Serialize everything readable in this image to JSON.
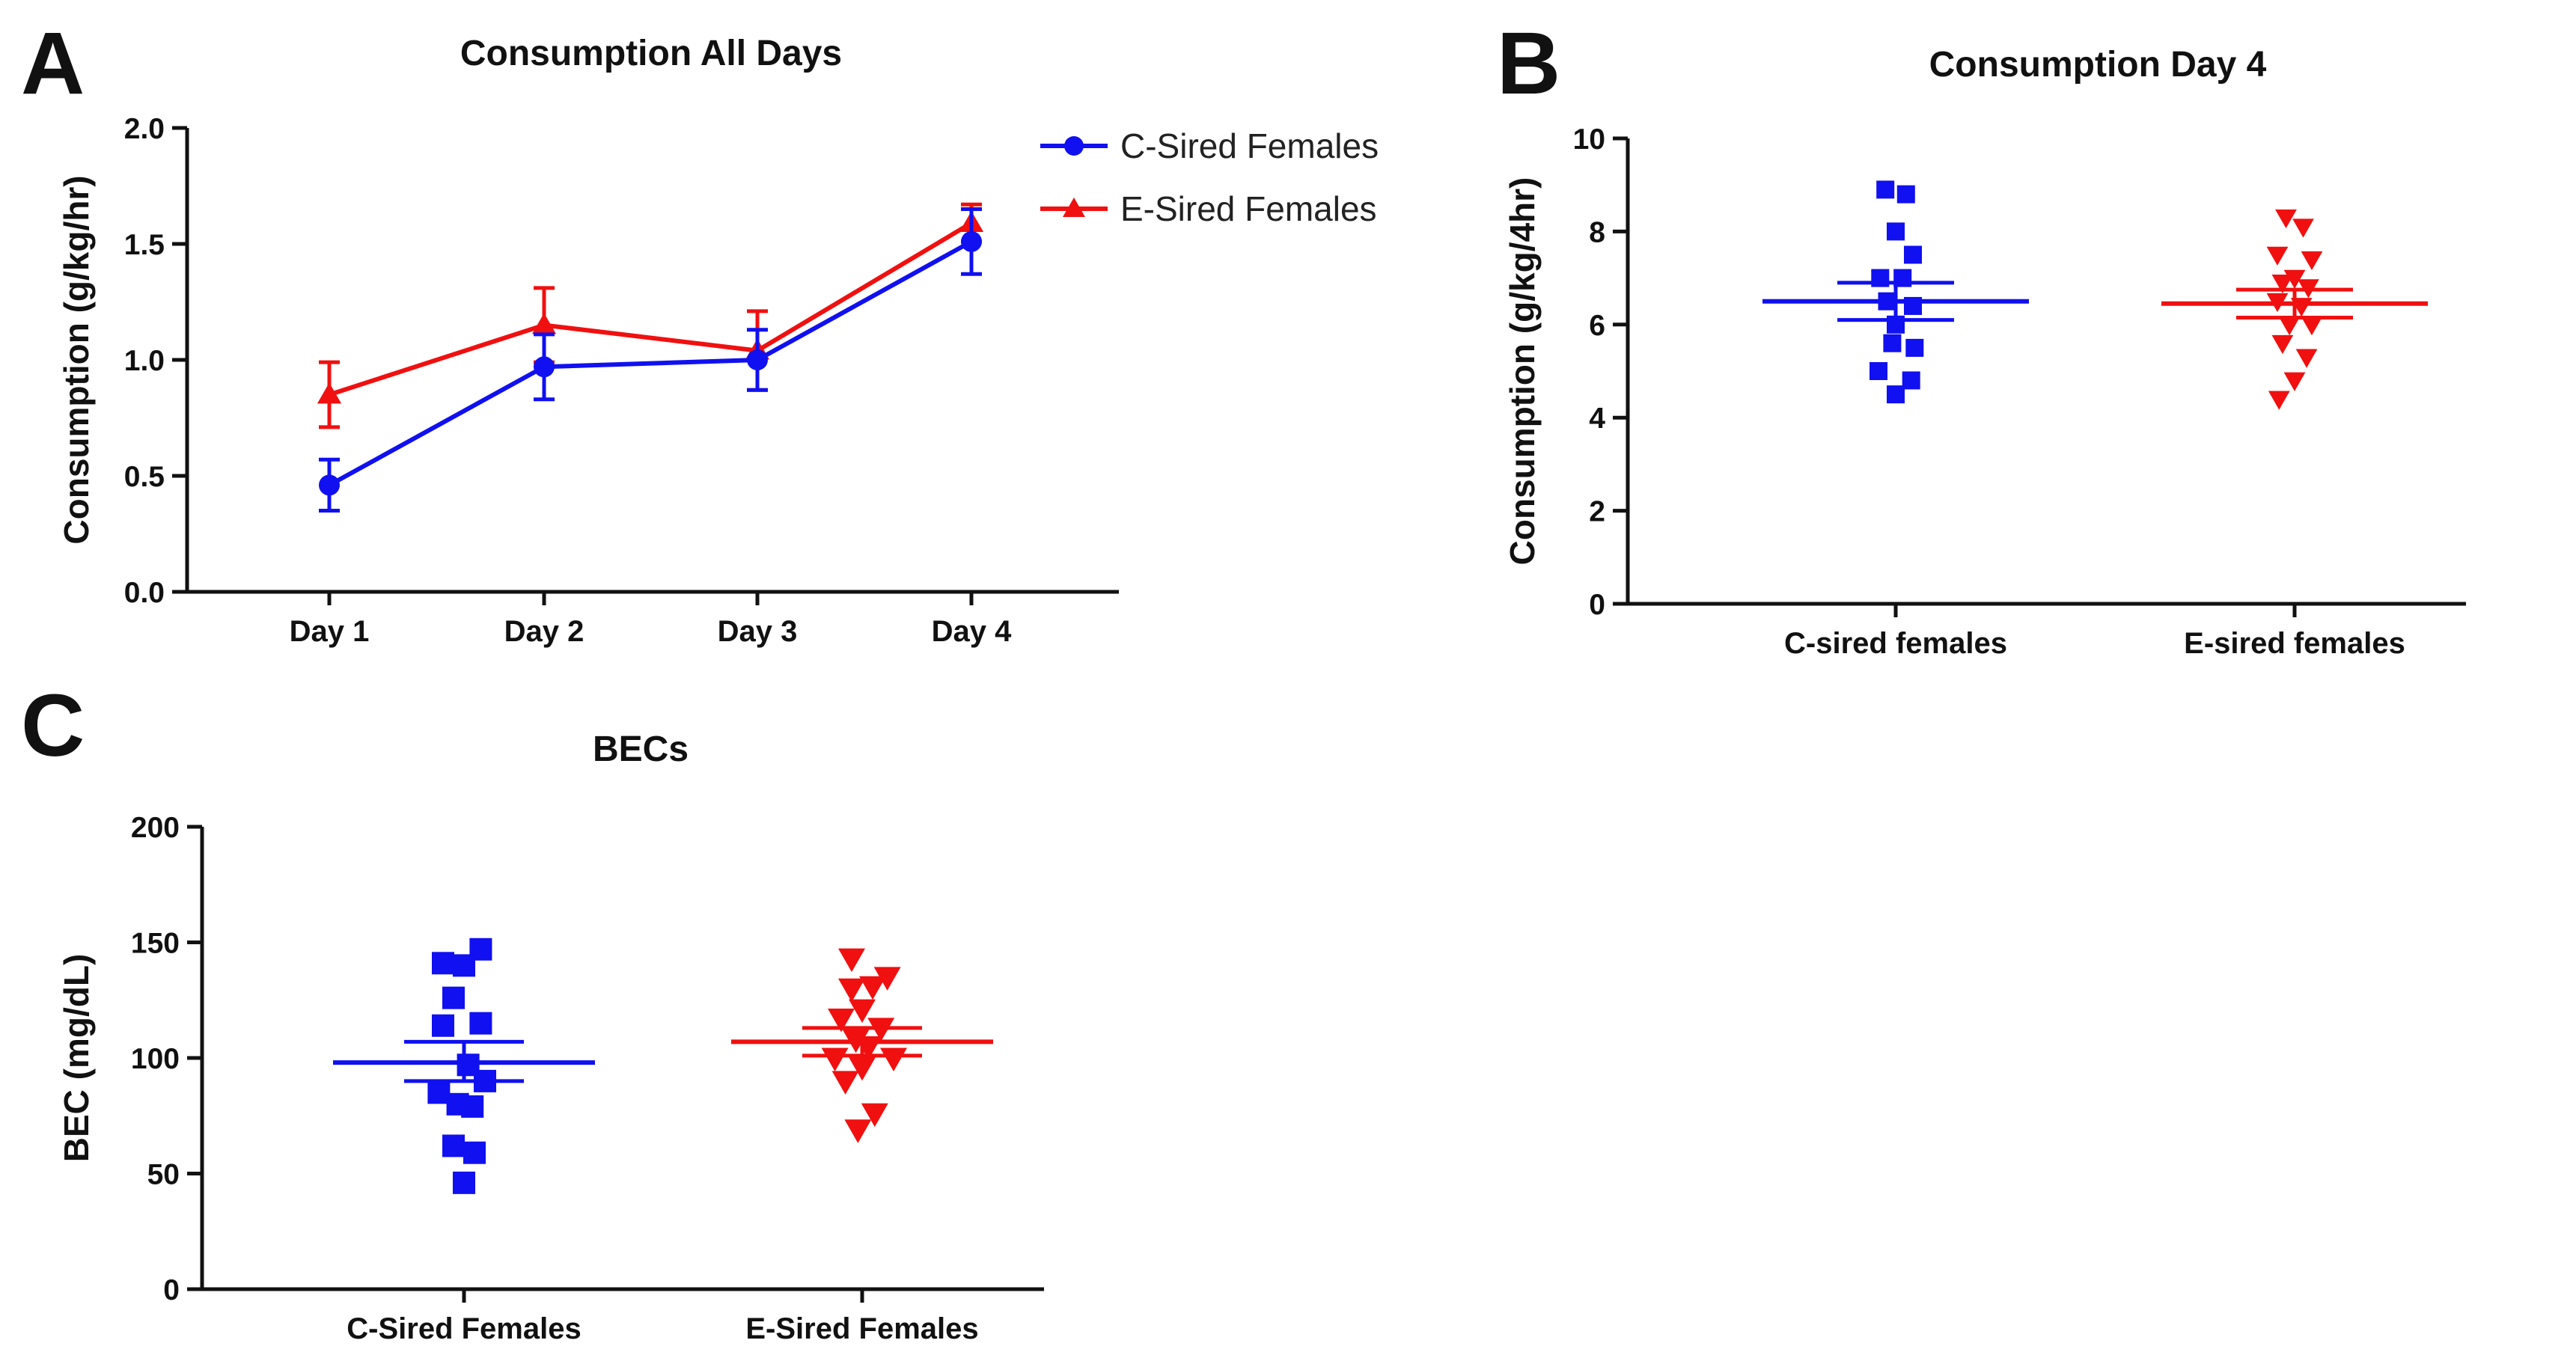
{
  "panels": {
    "A": "A",
    "B": "B",
    "C": "C"
  },
  "colors": {
    "c_sired": "#1010f0",
    "e_sired": "#f01010",
    "axis": "#111111"
  },
  "chart_data": [
    {
      "id": "A",
      "type": "line",
      "title": "Consumption All Days",
      "xlabel": "",
      "ylabel": "Consumption (g/kg/hr)",
      "categories": [
        "Day 1",
        "Day 2",
        "Day 3",
        "Day 4"
      ],
      "ylim": [
        0,
        2.0
      ],
      "yticks": [
        0.0,
        0.5,
        1.0,
        1.5,
        2.0
      ],
      "ytick_labels": [
        "0.0",
        "0.5",
        "1.0",
        "1.5",
        "2.0"
      ],
      "legend_position": "top-right",
      "series": [
        {
          "name": "C-Sired Females",
          "marker": "circle",
          "color": "#1010f0",
          "values": [
            0.46,
            0.97,
            1.0,
            1.51
          ],
          "sem": [
            0.11,
            0.14,
            0.13,
            0.14
          ]
        },
        {
          "name": "E-Sired Females",
          "marker": "triangle",
          "color": "#f01010",
          "values": [
            0.85,
            1.15,
            1.04,
            1.59
          ],
          "sem": [
            0.14,
            0.16,
            0.17,
            0.08
          ]
        }
      ]
    },
    {
      "id": "B",
      "type": "scatter",
      "title": "Consumption Day 4",
      "xlabel": "",
      "ylabel": "Consumption (g/kg/4hr)",
      "categories": [
        "C-sired females",
        "E-sired females"
      ],
      "ylim": [
        0,
        10
      ],
      "yticks": [
        0,
        2,
        4,
        6,
        8,
        10
      ],
      "ytick_labels": [
        "0",
        "2",
        "4",
        "6",
        "8",
        "10"
      ],
      "groups": [
        {
          "name": "C-sired females",
          "marker": "square",
          "color": "#1010f0",
          "points": [
            [
              -0.06,
              8.9
            ],
            [
              0.06,
              8.8
            ],
            [
              0.0,
              8.0
            ],
            [
              0.1,
              7.5
            ],
            [
              -0.09,
              7.0
            ],
            [
              0.04,
              7.0
            ],
            [
              -0.05,
              6.5
            ],
            [
              0.1,
              6.4
            ],
            [
              0.0,
              6.0
            ],
            [
              -0.02,
              5.6
            ],
            [
              0.11,
              5.5
            ],
            [
              -0.1,
              5.0
            ],
            [
              0.09,
              4.8
            ],
            [
              0.0,
              4.5
            ]
          ],
          "mean": 6.5,
          "sem_low": 6.1,
          "sem_high": 6.9
        },
        {
          "name": "E-sired females",
          "marker": "triangle-down",
          "color": "#f01010",
          "points": [
            [
              -0.05,
              8.3
            ],
            [
              0.05,
              8.1
            ],
            [
              -0.1,
              7.5
            ],
            [
              0.1,
              7.4
            ],
            [
              0.0,
              7.0
            ],
            [
              -0.07,
              6.9
            ],
            [
              0.08,
              6.8
            ],
            [
              -0.1,
              6.5
            ],
            [
              0.04,
              6.4
            ],
            [
              -0.03,
              6.0
            ],
            [
              0.1,
              6.0
            ],
            [
              -0.07,
              5.6
            ],
            [
              0.07,
              5.3
            ],
            [
              0.0,
              4.8
            ],
            [
              -0.09,
              4.4
            ]
          ],
          "mean": 6.45,
          "sem_low": 6.15,
          "sem_high": 6.75
        }
      ]
    },
    {
      "id": "C",
      "type": "scatter",
      "title": "BECs",
      "xlabel": "",
      "ylabel": "BEC (mg/dL)",
      "categories": [
        "C-Sired Females",
        "E-Sired Females"
      ],
      "ylim": [
        0,
        200
      ],
      "yticks": [
        0,
        50,
        100,
        150,
        200
      ],
      "ytick_labels": [
        "0",
        "50",
        "100",
        "150",
        "200"
      ],
      "groups": [
        {
          "name": "C-Sired Females",
          "marker": "square",
          "color": "#1010f0",
          "points": [
            [
              0.08,
              147
            ],
            [
              -0.1,
              141
            ],
            [
              0.0,
              140
            ],
            [
              -0.05,
              126
            ],
            [
              0.08,
              115
            ],
            [
              -0.1,
              114
            ],
            [
              0.02,
              97
            ],
            [
              0.1,
              90
            ],
            [
              -0.12,
              85
            ],
            [
              -0.03,
              80
            ],
            [
              0.04,
              79
            ],
            [
              -0.05,
              62
            ],
            [
              0.05,
              59
            ],
            [
              0.0,
              46
            ]
          ],
          "mean": 98,
          "sem_low": 90,
          "sem_high": 107
        },
        {
          "name": "E-Sired Females",
          "marker": "triangle-down",
          "color": "#f01010",
          "points": [
            [
              -0.05,
              143
            ],
            [
              0.12,
              135
            ],
            [
              0.05,
              131
            ],
            [
              -0.05,
              130
            ],
            [
              0.0,
              121
            ],
            [
              -0.1,
              117
            ],
            [
              0.09,
              113
            ],
            [
              -0.03,
              108
            ],
            [
              0.03,
              105
            ],
            [
              -0.13,
              100
            ],
            [
              0.15,
              100
            ],
            [
              0.0,
              96
            ],
            [
              -0.08,
              90
            ],
            [
              0.06,
              76
            ],
            [
              -0.02,
              69
            ]
          ],
          "mean": 107,
          "sem_low": 101,
          "sem_high": 113
        }
      ]
    }
  ]
}
